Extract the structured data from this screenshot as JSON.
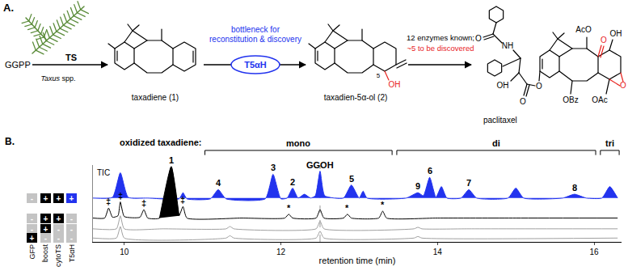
{
  "panel_a": {
    "label": "A.",
    "plant_label": "Taxus spp.",
    "substrate": "GGPP",
    "enzyme_1": "TS",
    "compound_1": "taxadiene (1)",
    "enzyme_2": "T5αH",
    "bottleneck_note": [
      "bottleneck for",
      "reconstitution & discovery"
    ],
    "compound_2": "taxadien-5α-ol (2)",
    "compound_2_labels": [
      {
        "text": "5",
        "color": "#000000"
      },
      {
        "text": "OH",
        "color": "#e8231f"
      }
    ],
    "pathway_note": "12 enzymes known;",
    "pathway_note_2": "~5 to be discovered",
    "product": "paclitaxel",
    "product_labels": [
      {
        "text": "O",
        "color": "#000000"
      },
      {
        "text": "NH",
        "color": "#000000"
      },
      {
        "text": "O",
        "color": "#000000"
      },
      {
        "text": "O",
        "color": "#000000"
      },
      {
        "text": "OH",
        "color": "#000000"
      },
      {
        "text": "AcO",
        "color": "#000000"
      },
      {
        "text": "O",
        "color": "#e8231f"
      },
      {
        "text": "OH",
        "color": "#000000"
      },
      {
        "text": "OBz",
        "color": "#000000"
      },
      {
        "text": "OAc",
        "color": "#000000"
      },
      {
        "text": "O",
        "color": "#e8231f"
      }
    ]
  },
  "chart_data": {
    "type": "line",
    "panel_label": "B.",
    "x_label": "retention time (min)",
    "xlim": [
      9.6,
      16.35
    ],
    "xticks": [
      10,
      12,
      14,
      16
    ],
    "ylim": [
      0,
      100
    ],
    "tick_labels": "x",
    "grid": false,
    "trace_label": "TIC",
    "series": [
      {
        "color": "#2233ee",
        "type": "area",
        "x": [
          9.6,
          9.85,
          9.95,
          10.05,
          10.3,
          10.7,
          10.75,
          10.8,
          11.1,
          11.2,
          11.3,
          11.8,
          11.9,
          12.0,
          12.08,
          12.15,
          12.22,
          12.3,
          12.38,
          12.44,
          12.5,
          12.56,
          12.8,
          12.9,
          13.0,
          13.05,
          13.1,
          13.6,
          13.75,
          13.82,
          13.9,
          13.98,
          14.05,
          14.12,
          14.3,
          14.4,
          14.5,
          14.9,
          15.0,
          15.1,
          15.6,
          15.75,
          15.9,
          16.1,
          16.2,
          16.3
        ],
        "values": [
          57,
          58,
          90,
          58,
          57,
          56,
          64,
          56,
          56,
          68,
          56,
          56,
          88,
          56,
          57,
          70,
          57,
          62,
          57,
          60,
          92,
          60,
          57,
          74,
          57,
          66,
          57,
          57,
          64,
          60,
          84,
          58,
          72,
          57,
          57,
          68,
          57,
          57,
          70,
          57,
          57,
          62,
          57,
          57,
          72,
          57
        ]
      },
      {
        "color": "#000000",
        "type": "line",
        "x": [
          9.6,
          9.75,
          9.8,
          9.85,
          9.92,
          9.95,
          10.0,
          10.2,
          10.25,
          10.3,
          10.45,
          10.6,
          10.7,
          10.75,
          10.8,
          11.5,
          12.05,
          12.1,
          12.15,
          12.45,
          12.5,
          12.55,
          12.8,
          12.85,
          12.9,
          13.25,
          13.3,
          13.35,
          14.0,
          15.0,
          16.3
        ],
        "values": [
          31,
          31,
          44,
          32,
          34,
          52,
          33,
          32,
          42,
          31,
          31,
          98,
          34,
          46,
          31,
          31,
          31,
          36,
          31,
          31,
          42,
          31,
          31,
          36,
          31,
          31,
          40,
          31,
          31,
          31,
          31
        ]
      },
      {
        "color": "#000000",
        "type": "area",
        "x": [
          10.45,
          10.6,
          10.7
        ],
        "values": [
          31,
          98,
          34
        ]
      },
      {
        "color": "#a0a0a0",
        "type": "line",
        "x": [
          9.6,
          9.9,
          9.95,
          10.0,
          10.5,
          11.3,
          11.35,
          11.4,
          12.45,
          12.5,
          12.55,
          13.7,
          13.75,
          13.8,
          14.4,
          16.3
        ],
        "values": [
          17,
          17,
          34,
          17,
          17,
          17,
          20,
          17,
          17,
          27,
          17,
          17,
          19,
          17,
          17,
          17
        ]
      },
      {
        "color": "#a0a0a0",
        "type": "line",
        "x": [
          9.6,
          9.9,
          9.95,
          10.0,
          11.3,
          11.35,
          11.4,
          12.45,
          12.5,
          12.55,
          13.7,
          13.75,
          13.8,
          16.3
        ],
        "values": [
          5,
          5,
          20,
          5,
          5,
          8,
          5,
          5,
          14,
          5,
          5,
          7,
          5,
          5
        ]
      }
    ],
    "peak_labels": [
      {
        "text": "1",
        "x": 10.6,
        "series": 1
      },
      {
        "text": "4",
        "x": 11.2,
        "series": 0
      },
      {
        "text": "3",
        "x": 11.9,
        "series": 0
      },
      {
        "text": "2",
        "x": 12.15,
        "series": 0
      },
      {
        "text": "5",
        "x": 12.9,
        "series": 0
      },
      {
        "text": "9",
        "x": 13.75,
        "series": 0
      },
      {
        "text": "6",
        "x": 13.9,
        "series": 0
      },
      {
        "text": "7",
        "x": 14.4,
        "series": 0
      },
      {
        "text": "8",
        "x": 15.75,
        "series": 0
      },
      {
        "text": "‡",
        "x": 9.8,
        "series": 1
      },
      {
        "text": "‡",
        "x": 9.95,
        "series": 1
      },
      {
        "text": "‡",
        "x": 10.25,
        "series": 1
      },
      {
        "text": "‡",
        "x": 10.75,
        "series": 1
      },
      {
        "text": "*",
        "x": 12.1,
        "series": 1
      },
      {
        "text": "*",
        "x": 12.85,
        "series": 1
      },
      {
        "text": "*",
        "x": 13.3,
        "series": 1
      }
    ],
    "marker_lines": [
      {
        "text": "GGOH",
        "x": 12.5,
        "series": 0
      }
    ],
    "group_title": "oxidized taxadiene:",
    "groups": [
      {
        "label": "mono",
        "start": 11.0,
        "end": 13.45
      },
      {
        "label": "di",
        "start": 13.45,
        "end": 16.05
      },
      {
        "label": "tri",
        "start": 16.05,
        "end": 16.35
      }
    ],
    "conditions": {
      "labels": [
        "GFP",
        "boost",
        "cytoTS",
        "T5αH"
      ],
      "colors": [
        "#000000",
        "#000000",
        "#000000",
        "#2233ee"
      ],
      "rows": [
        {
          "series": 0,
          "marks": [
            "-",
            "+",
            "+",
            "+"
          ]
        },
        {
          "series": 1,
          "marks": [
            "-",
            "+",
            "+",
            "-"
          ]
        },
        {
          "series": 3,
          "marks": [
            "-",
            "+",
            "-",
            "-"
          ]
        },
        {
          "series": 4,
          "marks": [
            "+",
            "-",
            "-",
            "-"
          ]
        }
      ]
    }
  }
}
